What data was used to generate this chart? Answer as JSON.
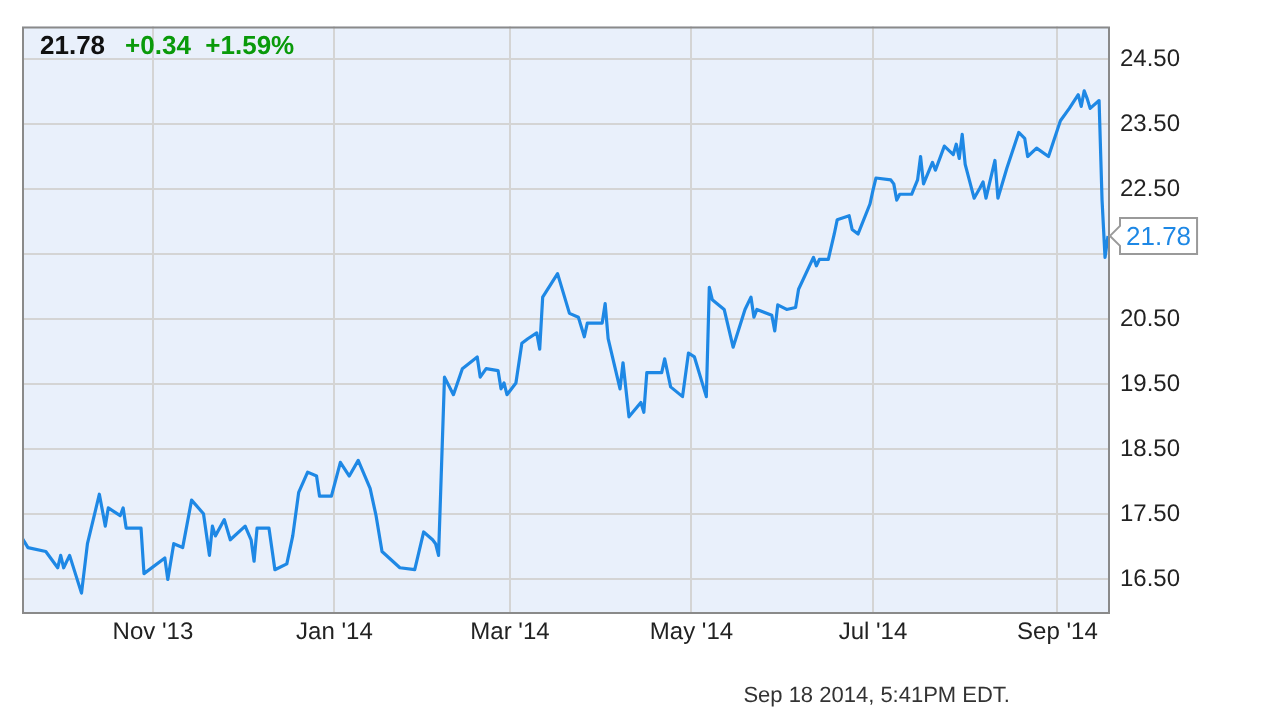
{
  "chart_data": {
    "type": "line",
    "title": "21.78",
    "subtitle": "+0.34  +1.59%",
    "annotations": [
      {
        "text": "21.78",
        "x": "2014-09-18",
        "y": 21.78
      },
      "Sep 18 2014, 5:41PM EDT."
    ],
    "x": [
      "2013-09-18",
      "2013-09-20",
      "2013-09-26",
      "2013-09-30",
      "2013-10-01",
      "2013-10-02",
      "2013-10-04",
      "2013-10-08",
      "2013-10-10",
      "2013-10-14",
      "2013-10-16",
      "2013-10-17",
      "2013-10-21",
      "2013-10-22",
      "2013-10-23",
      "2013-10-28",
      "2013-10-29",
      "2013-11-05",
      "2013-11-06",
      "2013-11-08",
      "2013-11-11",
      "2013-11-14",
      "2013-11-18",
      "2013-11-20",
      "2013-11-21",
      "2013-11-22",
      "2013-11-25",
      "2013-11-27",
      "2013-12-02",
      "2013-12-04",
      "2013-12-05",
      "2013-12-06",
      "2013-12-10",
      "2013-12-12",
      "2013-12-16",
      "2013-12-18",
      "2013-12-20",
      "2013-12-23",
      "2013-12-26",
      "2013-12-27",
      "2013-12-31",
      "2014-01-03",
      "2014-01-06",
      "2014-01-09",
      "2014-01-13",
      "2014-01-15",
      "2014-01-17",
      "2014-01-23",
      "2014-01-28",
      "2014-01-31",
      "2014-02-03",
      "2014-02-04",
      "2014-02-05",
      "2014-02-07",
      "2014-02-10",
      "2014-02-13",
      "2014-02-18",
      "2014-02-19",
      "2014-02-21",
      "2014-02-25",
      "2014-02-26",
      "2014-02-27",
      "2014-02-28",
      "2014-03-03",
      "2014-03-05",
      "2014-03-07",
      "2014-03-10",
      "2014-03-11",
      "2014-03-12",
      "2014-03-17",
      "2014-03-21",
      "2014-03-24",
      "2014-03-26",
      "2014-03-27",
      "2014-04-01",
      "2014-04-02",
      "2014-04-03",
      "2014-04-07",
      "2014-04-08",
      "2014-04-10",
      "2014-04-14",
      "2014-04-15",
      "2014-04-16",
      "2014-04-21",
      "2014-04-22",
      "2014-04-24",
      "2014-04-28",
      "2014-04-30",
      "2014-05-02",
      "2014-05-06",
      "2014-05-07",
      "2014-05-08",
      "2014-05-12",
      "2014-05-15",
      "2014-05-19",
      "2014-05-21",
      "2014-05-22",
      "2014-05-23",
      "2014-05-28",
      "2014-05-29",
      "2014-05-30",
      "2014-06-02",
      "2014-06-05",
      "2014-06-06",
      "2014-06-11",
      "2014-06-12",
      "2014-06-13",
      "2014-06-16",
      "2014-06-18",
      "2014-06-19",
      "2014-06-23",
      "2014-06-24",
      "2014-06-26",
      "2014-06-30",
      "2014-07-01",
      "2014-07-02",
      "2014-07-07",
      "2014-07-08",
      "2014-07-09",
      "2014-07-10",
      "2014-07-14",
      "2014-07-16",
      "2014-07-17",
      "2014-07-18",
      "2014-07-21",
      "2014-07-22",
      "2014-07-25",
      "2014-07-28",
      "2014-07-29",
      "2014-07-30",
      "2014-07-31",
      "2014-08-01",
      "2014-08-04",
      "2014-08-06",
      "2014-08-07",
      "2014-08-08",
      "2014-08-11",
      "2014-08-12",
      "2014-08-15",
      "2014-08-19",
      "2014-08-21",
      "2014-08-22",
      "2014-08-25",
      "2014-08-29",
      "2014-09-02",
      "2014-09-05",
      "2014-09-08",
      "2014-09-09",
      "2014-09-10",
      "2014-09-11",
      "2014-09-12",
      "2014-09-15",
      "2014-09-16",
      "2014-09-17",
      "2014-09-18"
    ],
    "series": [
      {
        "color": "#1e88e5",
        "values": [
          17.14,
          16.99,
          16.93,
          16.68,
          16.87,
          16.68,
          16.87,
          16.29,
          17.05,
          17.81,
          17.32,
          17.6,
          17.48,
          17.6,
          17.29,
          17.29,
          16.59,
          16.83,
          16.5,
          17.05,
          16.99,
          17.72,
          17.51,
          16.87,
          17.32,
          17.17,
          17.42,
          17.11,
          17.32,
          17.11,
          16.78,
          17.29,
          17.29,
          16.65,
          16.74,
          17.17,
          17.84,
          18.15,
          18.09,
          17.78,
          17.78,
          18.3,
          18.09,
          18.33,
          17.9,
          17.48,
          16.93,
          16.68,
          16.65,
          17.23,
          17.11,
          17.05,
          16.87,
          19.61,
          19.34,
          19.74,
          19.92,
          19.61,
          19.74,
          19.71,
          19.43,
          19.52,
          19.34,
          19.52,
          20.13,
          20.2,
          20.29,
          20.04,
          20.84,
          21.2,
          20.59,
          20.53,
          20.23,
          20.44,
          20.44,
          20.74,
          20.2,
          19.43,
          19.83,
          19.0,
          19.22,
          19.07,
          19.68,
          19.68,
          19.89,
          19.46,
          19.31,
          19.98,
          19.92,
          19.31,
          20.99,
          20.8,
          20.65,
          20.07,
          20.65,
          20.84,
          20.53,
          20.65,
          20.56,
          20.32,
          20.72,
          20.65,
          20.68,
          20.96,
          21.45,
          21.32,
          21.42,
          21.42,
          21.81,
          22.03,
          22.09,
          21.88,
          21.81,
          22.27,
          22.48,
          22.67,
          22.64,
          22.58,
          22.33,
          22.42,
          22.42,
          22.64,
          23.0,
          22.58,
          22.91,
          22.79,
          23.16,
          23.03,
          23.19,
          22.97,
          23.34,
          22.88,
          22.36,
          22.52,
          22.61,
          22.36,
          22.94,
          22.36,
          22.82,
          23.37,
          23.28,
          23.0,
          23.13,
          23.0,
          23.55,
          23.74,
          23.95,
          23.77,
          24.01,
          23.89,
          23.74,
          23.86,
          22.33,
          21.45,
          21.78
        ]
      }
    ],
    "xlim": [
      "2013-09-18",
      "2014-09-18"
    ],
    "xticks": [
      {
        "value": "2013-11-01",
        "label": "Nov '13"
      },
      {
        "value": "2014-01-01",
        "label": "Jan '14"
      },
      {
        "value": "2014-03-01",
        "label": "Mar '14"
      },
      {
        "value": "2014-05-01",
        "label": "May '14"
      },
      {
        "value": "2014-07-01",
        "label": "Jul '14"
      },
      {
        "value": "2014-09-01",
        "label": "Sep '14"
      }
    ],
    "ylim": [
      16,
      25
    ],
    "yticks": [
      {
        "value": 16.5,
        "label": "16.50"
      },
      {
        "value": 17.5,
        "label": "17.50"
      },
      {
        "value": 18.5,
        "label": "18.50"
      },
      {
        "value": 19.5,
        "label": "19.50"
      },
      {
        "value": 20.5,
        "label": "20.50"
      },
      {
        "value": 21.5,
        "label": null
      },
      {
        "value": 22.5,
        "label": "22.50"
      },
      {
        "value": 23.5,
        "label": "23.50"
      },
      {
        "value": 24.5,
        "label": "24.50"
      }
    ],
    "grid": true,
    "marker": "none",
    "line_style": "solid",
    "legend": false
  }
}
